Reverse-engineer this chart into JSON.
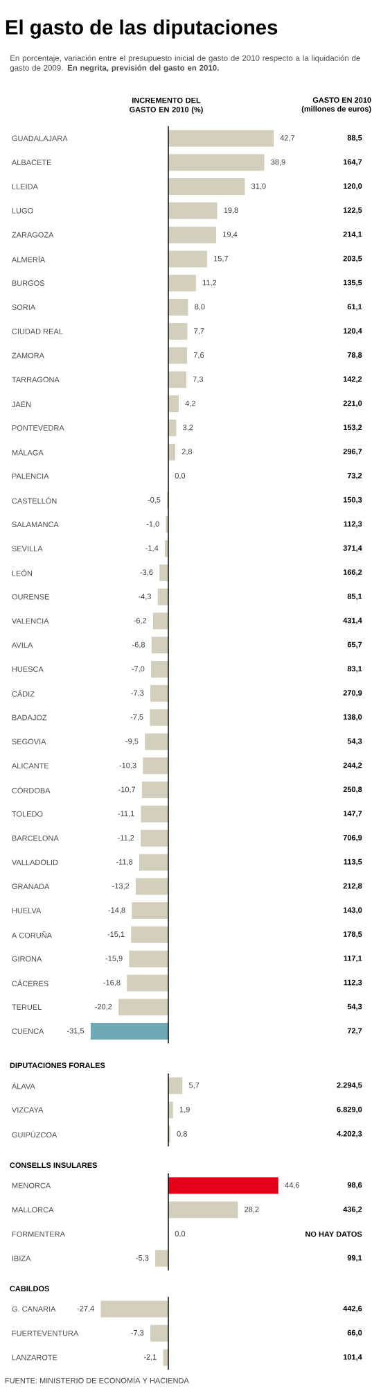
{
  "chart_data": [
    {
      "type": "bar",
      "orientation": "horizontal",
      "title": "El gasto de las diputaciones",
      "subtitle": "En porcentaje, variación entre el presupuesto inicial de gasto de 2010 respecto a la liquidación de gasto de 2009. **En negrita, previsión del gasto en 2010.**",
      "xlabel": "INCREMENTO DEL GASTO EN 2010 (%)",
      "categories": [
        "GUADALAJARA",
        "ALBACETE",
        "LLEIDA",
        "LUGO",
        "ZARAGOZA",
        "ALMERÍA",
        "BURGOS",
        "SORIA",
        "CIUDAD REAL",
        "ZAMORA",
        "TARRAGONA",
        "JAÉN",
        "PONTEVEDRA",
        "MÁLAGA",
        "PALENCIA",
        "CASTELLÓN",
        "SALAMANCA",
        "SEVILLA",
        "LEÓN",
        "OURENSE",
        "VALENCIA",
        "AVILA",
        "HUESCA",
        "CÁDIZ",
        "BADAJOZ",
        "SEGOVIA",
        "ALICANTE",
        "CÓRDOBA",
        "TOLEDO",
        "BARCELONA",
        "VALLADOLID",
        "GRANADA",
        "HUELVA",
        "A CORUÑA",
        "GIRONA",
        "CÁCERES",
        "TERUEL",
        "CUENCA"
      ],
      "values": [
        42.7,
        38.9,
        31.0,
        19.8,
        19.4,
        15.7,
        11.2,
        8.0,
        7.7,
        7.6,
        7.3,
        4.2,
        3.2,
        2.8,
        0.0,
        -0.5,
        -1.0,
        -1.4,
        -3.6,
        -4.3,
        -6.2,
        -6.8,
        -7.0,
        -7.3,
        -7.5,
        -9.5,
        -10.3,
        -10.7,
        -11.1,
        -11.2,
        -11.8,
        -13.2,
        -14.8,
        -15.1,
        -15.9,
        -16.8,
        -20.2,
        -31.5
      ],
      "value_labels": [
        "42,7",
        "38,9",
        "31,0",
        "19,8",
        "19,4",
        "15,7",
        "11,2",
        "8,0",
        "7,7",
        "7,6",
        "7,3",
        "4,2",
        "3,2",
        "2,8",
        "0,0",
        "-0,5",
        "-1,0",
        "-1,4",
        "-3,6",
        "-4,3",
        "-6,2",
        "-6,8",
        "-7,0",
        "-7,3",
        "-7,5",
        "-9,5",
        "-10,3",
        "-10,7",
        "-11,1",
        "-11,2",
        "-11,8",
        "-13,2",
        "-14,8",
        "-15,1",
        "-15,9",
        "-16,8",
        "-20,2",
        "-31,5"
      ],
      "colors": [
        "#d3cfbd",
        "#d3cfbd",
        "#d3cfbd",
        "#d3cfbd",
        "#d3cfbd",
        "#d3cfbd",
        "#d3cfbd",
        "#d3cfbd",
        "#d3cfbd",
        "#d3cfbd",
        "#d3cfbd",
        "#d3cfbd",
        "#d3cfbd",
        "#d3cfbd",
        "#d3cfbd",
        "#d3cfbd",
        "#d3cfbd",
        "#d3cfbd",
        "#d3cfbd",
        "#d3cfbd",
        "#d3cfbd",
        "#d3cfbd",
        "#d3cfbd",
        "#d3cfbd",
        "#d3cfbd",
        "#d3cfbd",
        "#d3cfbd",
        "#d3cfbd",
        "#d3cfbd",
        "#d3cfbd",
        "#d3cfbd",
        "#d3cfbd",
        "#d3cfbd",
        "#d3cfbd",
        "#d3cfbd",
        "#d3cfbd",
        "#d3cfbd",
        "#6ea9b5"
      ],
      "tick_labels": "y",
      "annotations": [
        "GASTO EN 2010",
        "(millones de euros)",
        "88,5",
        "164,7",
        "120,0",
        "122,5",
        "214,1",
        "203,5",
        "135,5",
        "61,1",
        "120,4",
        "78,8",
        "142,2",
        "221,0",
        "153,2",
        "296,7",
        "73,2",
        "150,3",
        "112,3",
        "371,4",
        "166,2",
        "85,1",
        "431,4",
        "65,7",
        "83,1",
        "270,9",
        "138,0",
        "54,3",
        "244,2",
        "250,8",
        "147,7",
        "706,9",
        "113,5",
        "212,8",
        "143,0",
        "178,5",
        "117,1",
        "112,3",
        "54,3",
        "72,7"
      ]
    },
    {
      "type": "bar",
      "orientation": "horizontal",
      "title": "DIPUTACIONES FORALES",
      "categories": [
        "ÁLAVA",
        "VIZCAYA",
        "GUIPÚZCOA"
      ],
      "values": [
        5.7,
        1.9,
        0.8
      ],
      "value_labels": [
        "5,7",
        "1,9",
        "0,8"
      ],
      "colors": [
        "#d3cfbd",
        "#d3cfbd",
        "#d3cfbd"
      ],
      "tick_labels": "y",
      "annotations": [
        "2.294,5",
        "6.829,0",
        "4.202,3"
      ]
    },
    {
      "type": "bar",
      "orientation": "horizontal",
      "title": "CONSELLS INSULARES",
      "categories": [
        "MENORCA",
        "MALLORCA",
        "FORMENTERA",
        "IBIZA"
      ],
      "values": [
        44.6,
        28.2,
        0.0,
        -5.3
      ],
      "value_labels": [
        "44,6",
        "28,2",
        "0,0",
        "-5,3"
      ],
      "colors": [
        "#e2001a",
        "#d3cfbd",
        "#d3cfbd",
        "#d3cfbd"
      ],
      "tick_labels": "y",
      "annotations": [
        "98,6",
        "436,2",
        "NO HAY DATOS",
        "99,1"
      ]
    },
    {
      "type": "bar",
      "orientation": "horizontal",
      "title": "CABILDOS",
      "categories": [
        "G. CANARIA",
        "FUERTEVENTURA",
        "LANZAROTE"
      ],
      "values": [
        -27.4,
        -7.3,
        -2.1
      ],
      "value_labels": [
        "-27,4",
        "-7,3",
        "-2,1"
      ],
      "colors": [
        "#d3cfbd",
        "#d3cfbd",
        "#d3cfbd"
      ],
      "tick_labels": "y",
      "annotations": [
        "442,6",
        "66,0",
        "101,4",
        "FUENTE: MINISTERIO DE ECONOMÍA Y HACIENDA"
      ]
    }
  ]
}
